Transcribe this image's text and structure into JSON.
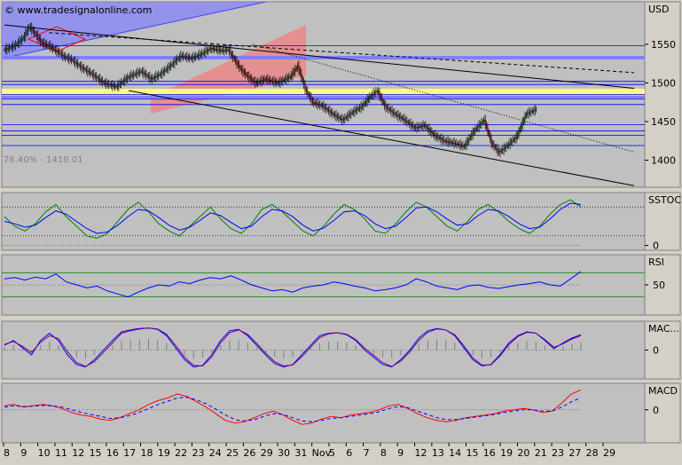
{
  "watermark": "© www.tradesignalonline.com",
  "fib_label": "76.40% - 1419.01",
  "colors": {
    "bg": "#c0c0c0",
    "axis_bg": "#d4d0c8",
    "candle_up": "#008000",
    "candle_down": "#cc0000",
    "blue_line": "#0000ff",
    "green_line": "#008000",
    "red_line": "#ff0000",
    "purple_line": "#800080",
    "channel_fill": "#f08080",
    "band_fill": "#8080ff",
    "yellow_band": "#ffff80"
  },
  "chart_data": [
    {
      "type": "candlestick",
      "panel": "price",
      "ylabel": "USD",
      "ylim": [
        1365,
        1605
      ],
      "yticks": [
        1400,
        1450,
        1500,
        1550
      ],
      "xtick_labels": [
        "8",
        "9",
        "10",
        "11",
        "12",
        "15",
        "16",
        "17",
        "18",
        "19",
        "22",
        "23",
        "24",
        "25",
        "26",
        "29",
        "30",
        "31",
        "Nov",
        "5",
        "6",
        "7",
        "8",
        "9",
        "12",
        "13",
        "14",
        "15",
        "16",
        "19",
        "20",
        "21",
        "23",
        "27",
        "28",
        "29"
      ],
      "close_anchors": [
        [
          0,
          1543
        ],
        [
          8,
          1548
        ],
        [
          15,
          1558
        ],
        [
          20,
          1573
        ],
        [
          24,
          1565
        ],
        [
          30,
          1552
        ],
        [
          36,
          1548
        ],
        [
          42,
          1541
        ],
        [
          48,
          1534
        ],
        [
          54,
          1530
        ],
        [
          62,
          1520
        ],
        [
          70,
          1512
        ],
        [
          80,
          1500
        ],
        [
          90,
          1495
        ],
        [
          100,
          1508
        ],
        [
          110,
          1515
        ],
        [
          118,
          1505
        ],
        [
          126,
          1512
        ],
        [
          134,
          1523
        ],
        [
          142,
          1535
        ],
        [
          150,
          1532
        ],
        [
          158,
          1537
        ],
        [
          166,
          1545
        ],
        [
          174,
          1542
        ],
        [
          180,
          1543
        ],
        [
          190,
          1518
        ],
        [
          196,
          1508
        ],
        [
          202,
          1500
        ],
        [
          210,
          1505
        ],
        [
          220,
          1500
        ],
        [
          230,
          1508
        ],
        [
          236,
          1522
        ],
        [
          242,
          1492
        ],
        [
          248,
          1475
        ],
        [
          256,
          1470
        ],
        [
          264,
          1460
        ],
        [
          272,
          1452
        ],
        [
          280,
          1462
        ],
        [
          288,
          1470
        ],
        [
          294,
          1482
        ],
        [
          300,
          1490
        ],
        [
          306,
          1470
        ],
        [
          314,
          1460
        ],
        [
          322,
          1452
        ],
        [
          330,
          1442
        ],
        [
          338,
          1445
        ],
        [
          346,
          1432
        ],
        [
          354,
          1425
        ],
        [
          362,
          1422
        ],
        [
          370,
          1418
        ],
        [
          378,
          1438
        ],
        [
          386,
          1452
        ],
        [
          392,
          1422
        ],
        [
          398,
          1410
        ],
        [
          404,
          1418
        ],
        [
          412,
          1430
        ],
        [
          420,
          1460
        ],
        [
          428,
          1466
        ]
      ],
      "hlines": [
        1548,
        1502,
        1498,
        1485,
        1479,
        1472,
        1432,
        1438,
        1446,
        1419
      ],
      "trendlines": [
        {
          "name": "resistance",
          "from": [
            0,
            1575
          ],
          "to": [
            464,
            1500
          ],
          "style": "solid"
        },
        {
          "name": "support",
          "from": [
            100,
            1490
          ],
          "to": [
            464,
            1380
          ],
          "style": "solid"
        },
        {
          "name": "upper",
          "from": [
            36,
            1565
          ],
          "to": [
            464,
            1518
          ],
          "style": "dashed"
        },
        {
          "name": "mid",
          "from": [
            200,
            1550
          ],
          "to": [
            464,
            1430
          ],
          "style": "dotted"
        }
      ]
    },
    {
      "type": "line",
      "panel": "stochastic",
      "ylabel": "SSTOC",
      "ylim": [
        -10,
        110
      ],
      "yticks": [
        0
      ],
      "guides": [
        20,
        80
      ],
      "series": [
        {
          "color": "green_line",
          "values": [
            60,
            40,
            30,
            45,
            70,
            85,
            60,
            40,
            20,
            15,
            25,
            50,
            75,
            90,
            70,
            45,
            30,
            20,
            40,
            60,
            80,
            55,
            35,
            25,
            45,
            75,
            85,
            70,
            50,
            30,
            20,
            40,
            65,
            85,
            75,
            55,
            30,
            25,
            45,
            70,
            90,
            80,
            60,
            40,
            30,
            50,
            75,
            85,
            70,
            50,
            35,
            25,
            40,
            65,
            85,
            95,
            80
          ]
        },
        {
          "color": "blue_line",
          "values": [
            50,
            45,
            38,
            42,
            58,
            72,
            65,
            50,
            35,
            25,
            28,
            42,
            60,
            75,
            72,
            58,
            42,
            32,
            38,
            52,
            68,
            62,
            48,
            35,
            40,
            60,
            75,
            72,
            60,
            42,
            30,
            36,
            52,
            70,
            72,
            62,
            45,
            35,
            40,
            58,
            78,
            80,
            70,
            55,
            42,
            45,
            62,
            75,
            72,
            60,
            45,
            35,
            38,
            55,
            75,
            88,
            85
          ]
        }
      ]
    },
    {
      "type": "line",
      "panel": "rsi",
      "ylabel": "RSI",
      "ylim": [
        0,
        100
      ],
      "yticks": [
        50
      ],
      "guides": [
        30,
        70
      ],
      "series": [
        {
          "color": "blue_line",
          "values": [
            60,
            62,
            58,
            63,
            60,
            68,
            55,
            50,
            45,
            48,
            40,
            35,
            30,
            38,
            45,
            50,
            48,
            55,
            52,
            58,
            62,
            60,
            65,
            58,
            50,
            45,
            40,
            42,
            38,
            45,
            48,
            50,
            55,
            52,
            48,
            45,
            40,
            42,
            45,
            50,
            60,
            55,
            48,
            45,
            42,
            48,
            50,
            46,
            44,
            47,
            50,
            52,
            55,
            50,
            48,
            60,
            72
          ]
        }
      ]
    },
    {
      "type": "line",
      "panel": "macd_histogram",
      "ylabel": "MAC...",
      "ylim": [
        -6,
        6
      ],
      "yticks": [
        0
      ],
      "series": [
        {
          "color": "blue_line",
          "values": [
            1,
            2,
            0.5,
            -1,
            2,
            3.5,
            2,
            -1,
            -3,
            -3.5,
            -2,
            0,
            2,
            3.8,
            4.2,
            4.5,
            4.6,
            4.3,
            3,
            0.5,
            -2,
            -3.5,
            -3.2,
            -1,
            2,
            4,
            4.3,
            3,
            1,
            -1,
            -2.8,
            -3.5,
            -3,
            -1,
            1,
            3,
            3.5,
            3.6,
            3.2,
            2,
            0,
            -1.5,
            -3,
            -3.5,
            -2,
            0,
            2.5,
            4,
            4.5,
            4.2,
            3,
            0.5,
            -2,
            -3.3,
            -3,
            -1,
            1.5,
            3,
            3.8,
            3.5,
            2,
            0.3,
            1.5,
            2.5,
            3.2
          ]
        },
        {
          "color": "purple_line",
          "values": [
            1.2,
            1.8,
            0.8,
            -0.5,
            1.6,
            3,
            2.4,
            -0.3,
            -2.6,
            -3.4,
            -2.4,
            -0.5,
            1.5,
            3.5,
            4,
            4.4,
            4.6,
            4.4,
            3.3,
            1,
            -1.5,
            -3.2,
            -3.3,
            -1.5,
            1.5,
            3.6,
            4.2,
            3.3,
            1.4,
            -0.6,
            -2.4,
            -3.3,
            -3.1,
            -1.4,
            0.6,
            2.6,
            3.4,
            3.6,
            3.3,
            2.2,
            0.4,
            -1.1,
            -2.6,
            -3.4,
            -2.3,
            -0.4,
            2,
            3.7,
            4.4,
            4.2,
            3.2,
            0.9,
            -1.6,
            -3.1,
            -3.1,
            -1.3,
            1.1,
            2.8,
            3.7,
            3.5,
            2.2,
            0.6,
            1.3,
            2.3,
            3
          ]
        }
      ]
    },
    {
      "type": "line",
      "panel": "macd",
      "ylabel": "MACD",
      "ylim": [
        -25,
        20
      ],
      "yticks": [
        0
      ],
      "series": [
        {
          "color": "red_line",
          "values": [
            3,
            4,
            2,
            3,
            4,
            3,
            1,
            -2,
            -4,
            -5,
            -7,
            -8,
            -6,
            -3,
            0,
            4,
            7,
            9,
            12,
            10,
            6,
            2,
            -3,
            -8,
            -10,
            -9,
            -6,
            -3,
            -1,
            -4,
            -8,
            -11,
            -10,
            -7,
            -5,
            -6,
            -4,
            -3,
            -2,
            0,
            3,
            4,
            1,
            -3,
            -6,
            -8,
            -9,
            -8,
            -6,
            -5,
            -4,
            -3,
            -1,
            0,
            1,
            0,
            -2,
            -1,
            5,
            12,
            15
          ]
        },
        {
          "color": "blue_line",
          "values": [
            2,
            3,
            2.5,
            2.8,
            3.3,
            3,
            2,
            0,
            -2,
            -3.5,
            -5,
            -6.5,
            -6,
            -4.5,
            -2,
            1,
            4,
            6.5,
            9,
            9.5,
            7.5,
            4.5,
            0.5,
            -4,
            -7.5,
            -8.5,
            -7.5,
            -5,
            -3,
            -3.5,
            -6,
            -8.5,
            -9,
            -8,
            -6.5,
            -6,
            -5,
            -4,
            -3,
            -1.5,
            1,
            2.5,
            1.5,
            -1,
            -3.5,
            -6,
            -7.5,
            -7.5,
            -6.5,
            -5.5,
            -4.5,
            -3.5,
            -2,
            -1,
            0,
            0,
            -1,
            -1,
            2,
            6,
            9
          ]
        }
      ]
    }
  ]
}
